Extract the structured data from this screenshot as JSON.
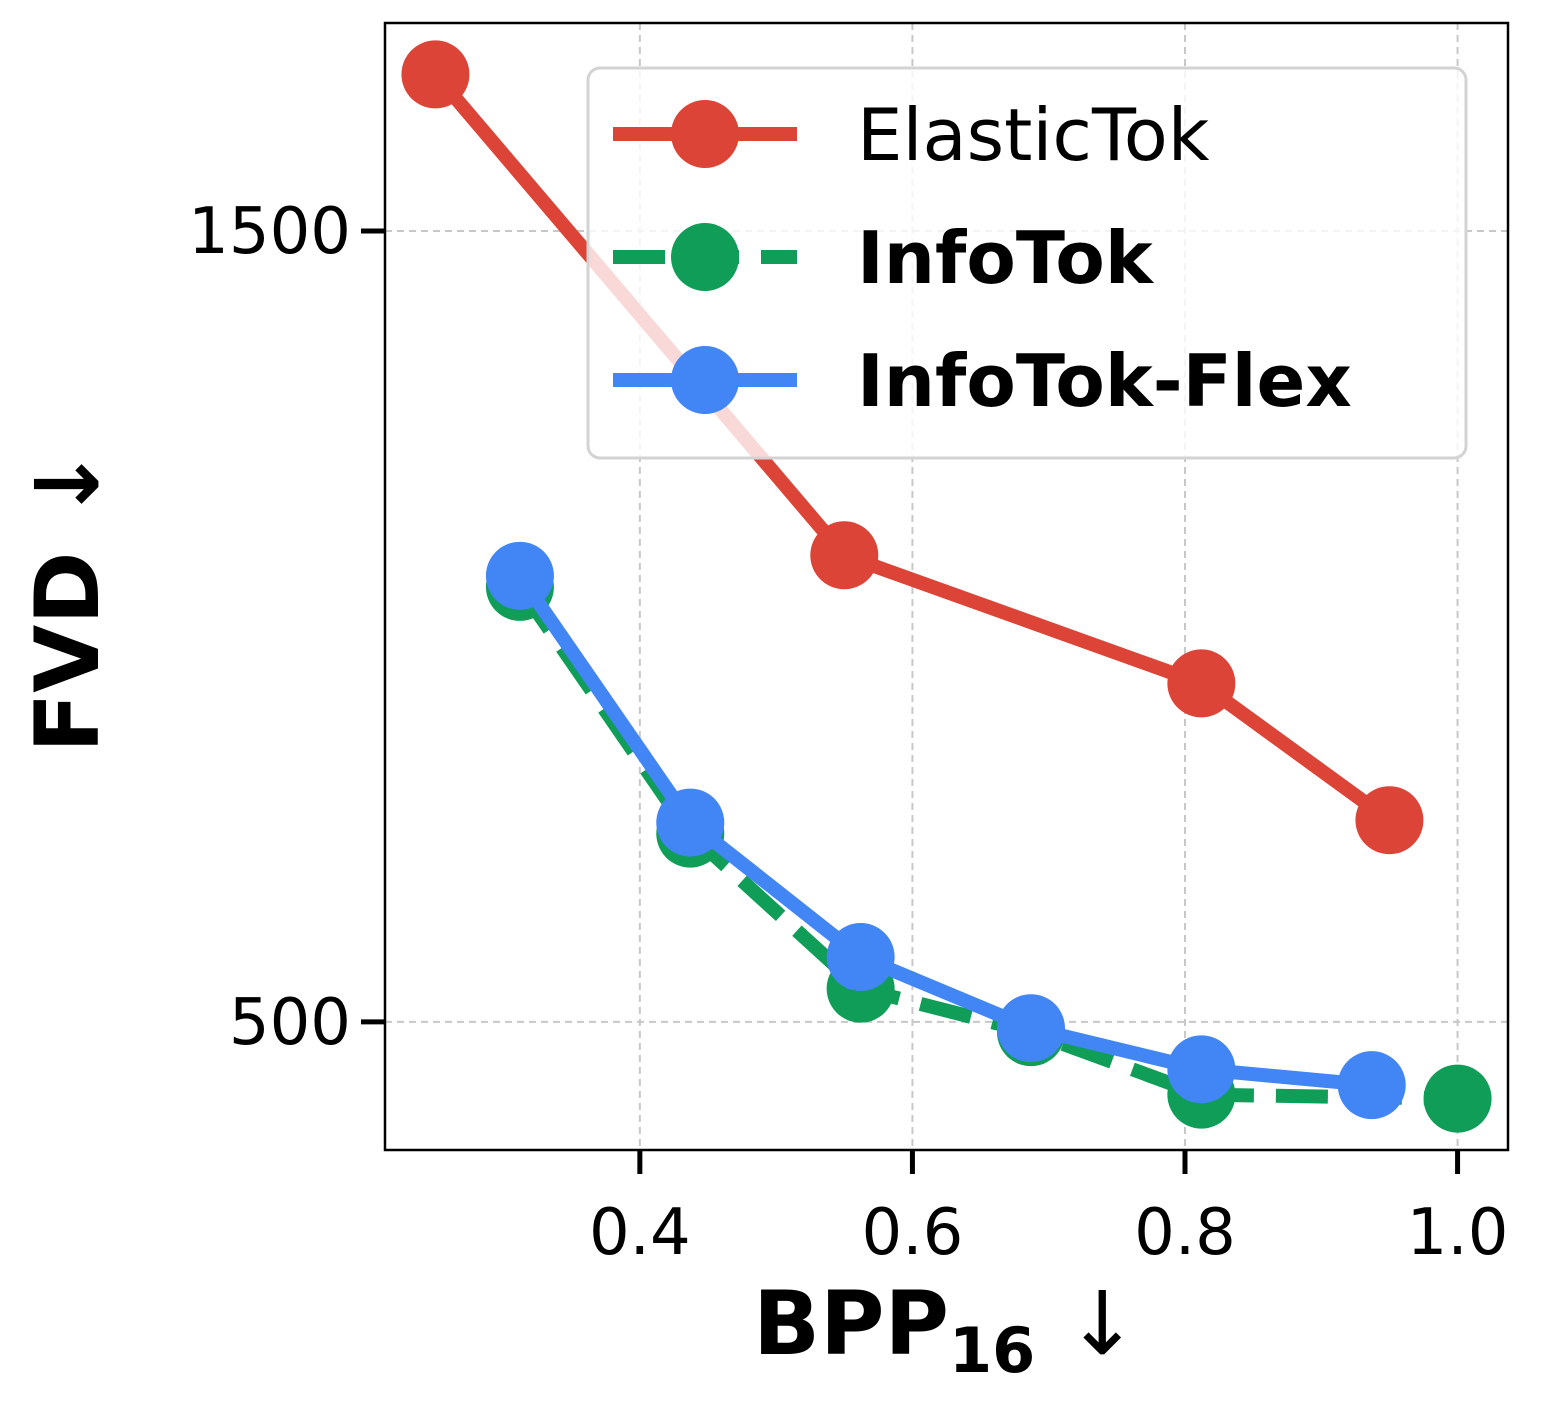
{
  "chart_data": {
    "type": "line",
    "xlabel": "BPP",
    "xlabel_sub": "16",
    "xlabel_arrow": "↓",
    "ylabel": "FVD ↓",
    "xlim": [
      0.213,
      1.037
    ],
    "ylim": [
      338,
      1763
    ],
    "xticks": [
      0.4,
      0.6,
      0.8,
      1.0
    ],
    "xtick_labels": [
      "0.4",
      "0.6",
      "0.8",
      "1.0"
    ],
    "yticks": [
      500,
      1500
    ],
    "ytick_labels": [
      "500",
      "1500"
    ],
    "grid": true,
    "legend_position": "top-right",
    "series": [
      {
        "name": "ElasticTok",
        "color": "#db4437",
        "dashed": false,
        "bold_label": false,
        "x": [
          0.25,
          0.55,
          0.812,
          0.95
        ],
        "y": [
          1698,
          1090,
          928,
          755
        ]
      },
      {
        "name": "InfoTok",
        "color": "#0f9d58",
        "dashed": true,
        "bold_label": true,
        "x": [
          0.312,
          0.437,
          0.562,
          0.687,
          0.812,
          1.0
        ],
        "y": [
          1050,
          738,
          542,
          487,
          408,
          403
        ]
      },
      {
        "name": "InfoTok-Flex",
        "color": "#4285f4",
        "dashed": false,
        "bold_label": true,
        "x": [
          0.312,
          0.437,
          0.562,
          0.687,
          0.812,
          0.937
        ],
        "y": [
          1064,
          752,
          582,
          492,
          440,
          420
        ]
      }
    ]
  }
}
